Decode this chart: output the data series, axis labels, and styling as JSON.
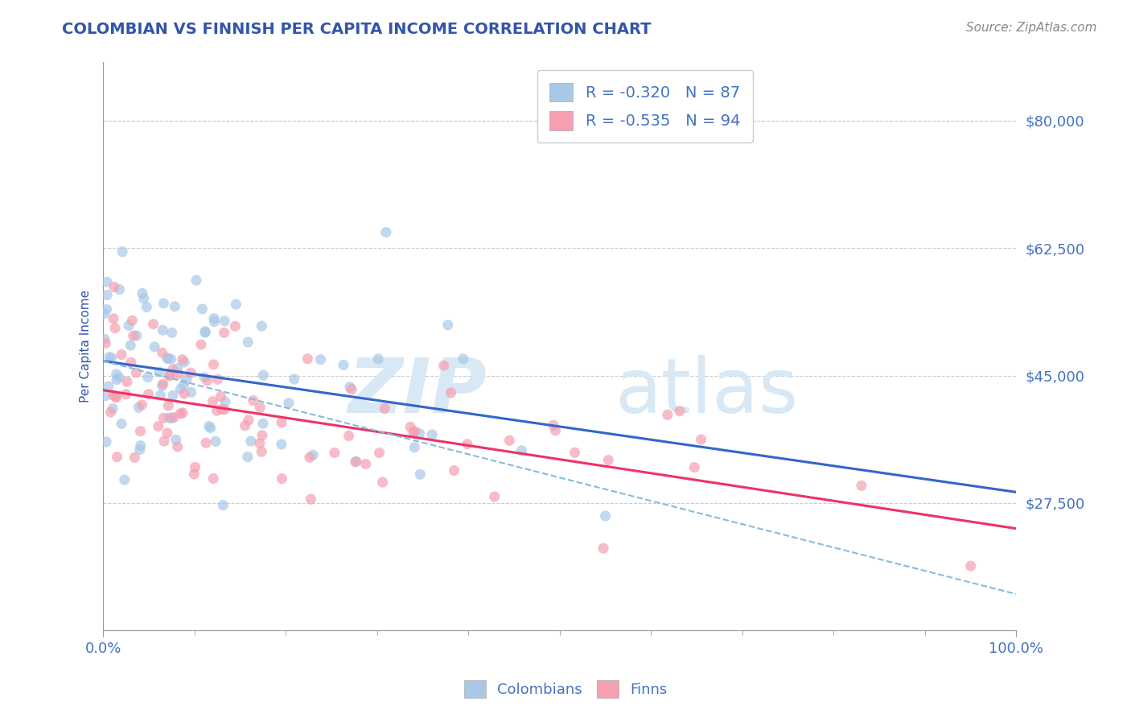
{
  "title": "COLOMBIAN VS FINNISH PER CAPITA INCOME CORRELATION CHART",
  "source": "Source: ZipAtlas.com",
  "ylabel": "Per Capita Income",
  "xlim": [
    0,
    1
  ],
  "ylim": [
    10000,
    88000
  ],
  "yticks": [
    27500,
    45000,
    62500,
    80000
  ],
  "ytick_labels": [
    "$27,500",
    "$45,000",
    "$62,500",
    "$80,000"
  ],
  "xtick_labels": [
    "0.0%",
    "100.0%"
  ],
  "colombians_color": "#a8c8e8",
  "finns_color": "#f4a0b0",
  "trend_colombians_color": "#3366cc",
  "trend_finns_color": "#ee3366",
  "dashed_color": "#88bbdd",
  "R_colombians": -0.32,
  "N_colombians": 87,
  "R_finns": -0.535,
  "N_finns": 94,
  "background_color": "#ffffff",
  "grid_color": "#cccccc",
  "title_color": "#3355aa",
  "axis_label_color": "#3355aa",
  "tick_label_color": "#4472c4",
  "watermark_color": "#d8e8f4",
  "watermark_zip": "ZIP",
  "watermark_atlas": "atlas",
  "col_intercept": 47000,
  "col_slope": -18000,
  "fin_intercept": 43000,
  "fin_slope": -19000,
  "dash_intercept": 47000,
  "dash_slope": -32000,
  "seed_col": 12,
  "seed_fin": 77
}
